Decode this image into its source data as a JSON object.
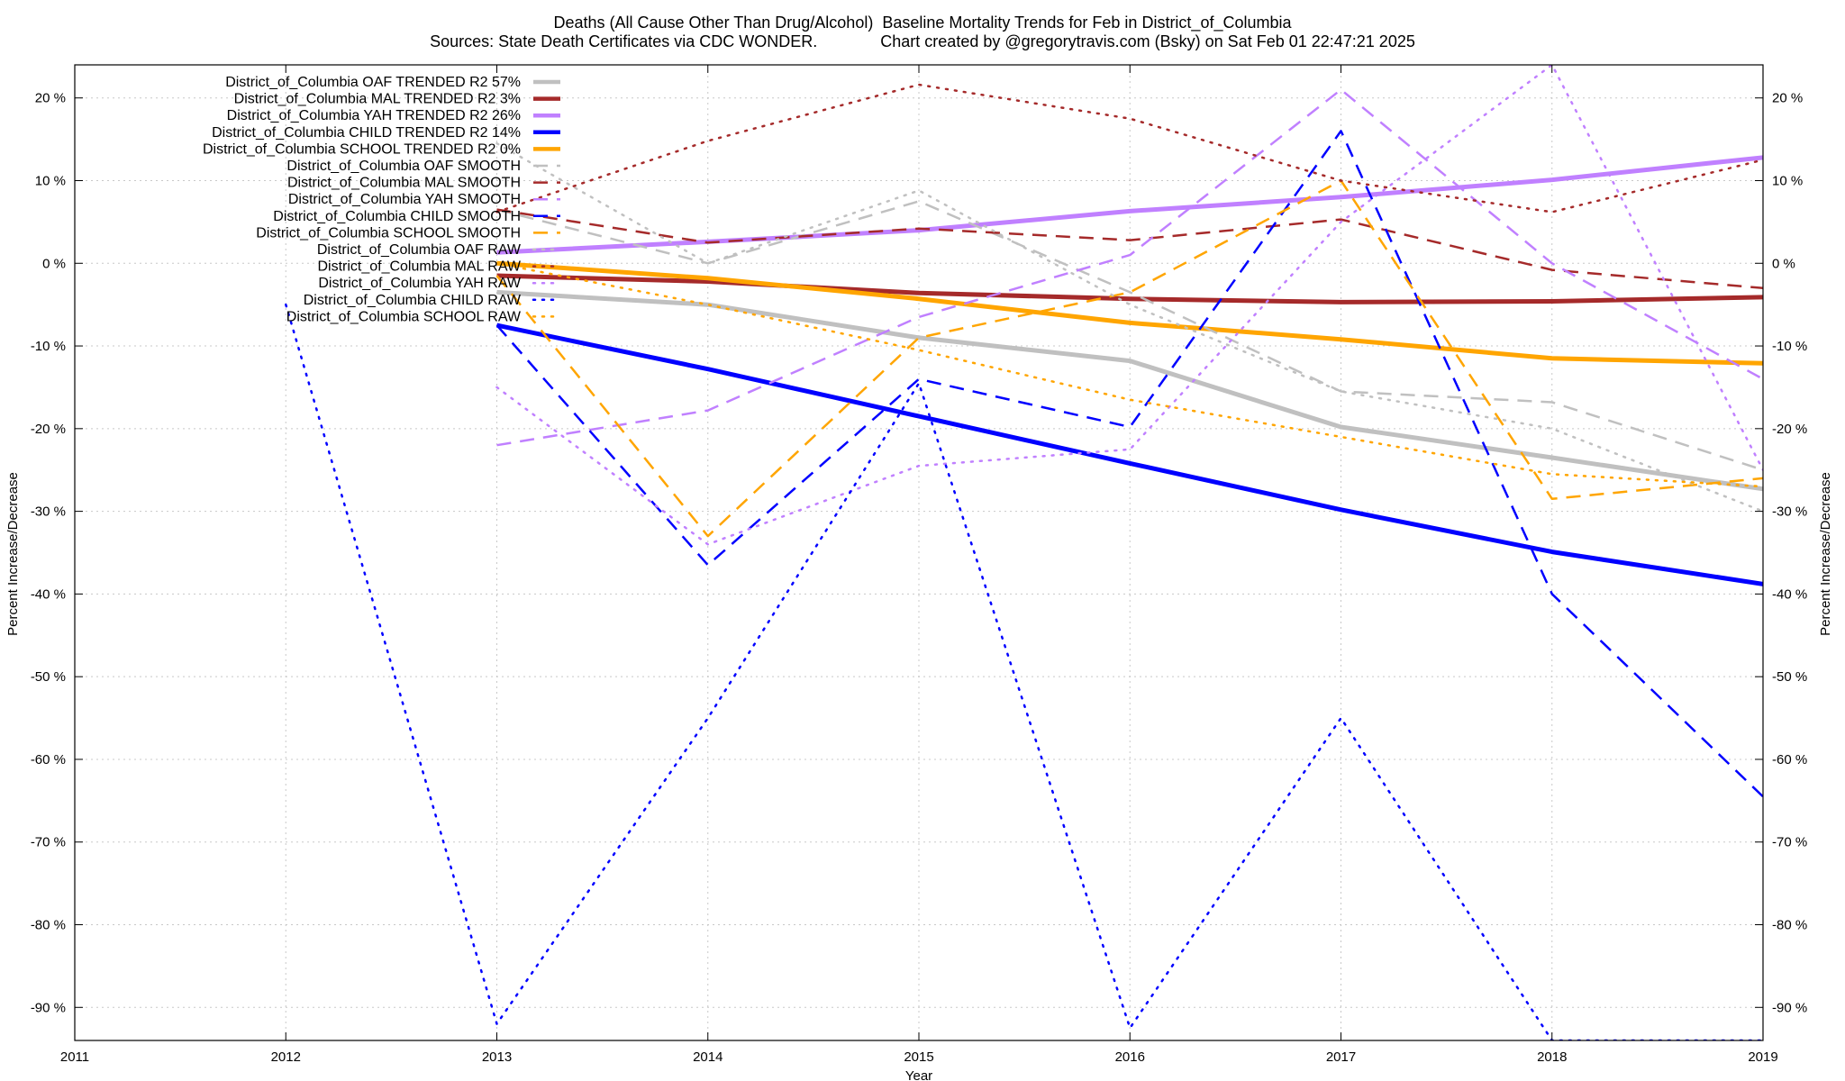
{
  "chart_data": {
    "type": "line",
    "title": "Deaths (All Cause Other Than Drug/Alcohol)  Baseline Mortality Trends for Feb in District_of_Columbia",
    "subtitle": "Sources: State Death Certificates via CDC WONDER.              Chart created by @gregorytravis.com (Bsky) on Sat Feb 01 22:47:21 2025",
    "xlabel": "Year",
    "ylabel": "Percent Increase/Decrease",
    "y2label": "Percent Increase/Decrease",
    "xlim": [
      2011,
      2019
    ],
    "ylim": [
      -94,
      24
    ],
    "x_ticks": [
      "2011",
      "2012",
      "2013",
      "2014",
      "2015",
      "2016",
      "2017",
      "2018",
      "2019"
    ],
    "y_ticks": [
      20,
      10,
      0,
      -10,
      -20,
      -30,
      -40,
      -50,
      -60,
      -70,
      -80,
      -90
    ],
    "y_tick_suffix": " %",
    "grid": true,
    "legend_position": "top-left",
    "series": [
      {
        "name": "District_of_Columbia OAF TRENDED R2  57%",
        "style": "solid",
        "color": "#c0c0c0",
        "x": [
          2013,
          2014,
          2015,
          2016,
          2017,
          2018,
          2019
        ],
        "y": [
          -3.5,
          -5,
          -9,
          -11.8,
          -19.8,
          -23.5,
          -27.3
        ]
      },
      {
        "name": "District_of_Columbia MAL TRENDED R2   3%",
        "style": "solid",
        "color": "#a52a2a",
        "x": [
          2013,
          2014,
          2015,
          2016,
          2017,
          2018,
          2019
        ],
        "y": [
          -1.5,
          -2.2,
          -3.6,
          -4.3,
          -4.7,
          -4.6,
          -4.1
        ]
      },
      {
        "name": "District_of_Columbia YAH TRENDED R2  26%",
        "style": "solid",
        "color": "#c080ff",
        "x": [
          2013,
          2014,
          2015,
          2016,
          2017,
          2018,
          2019
        ],
        "y": [
          1.3,
          2.6,
          4,
          6.3,
          8,
          10.1,
          12.8
        ]
      },
      {
        "name": "District_of_Columbia CHILD TRENDED R2  14%",
        "style": "solid",
        "color": "#0000ff",
        "x": [
          2013,
          2014,
          2015,
          2016,
          2017,
          2018,
          2019
        ],
        "y": [
          -7.5,
          -12.8,
          -18.5,
          -24.2,
          -29.8,
          -34.9,
          -38.8
        ]
      },
      {
        "name": "District_of_Columbia SCHOOL TRENDED R2   0%",
        "style": "solid",
        "color": "#ffa500",
        "x": [
          2013,
          2014,
          2015,
          2016,
          2017,
          2018,
          2019
        ],
        "y": [
          0,
          -1.8,
          -4.3,
          -7.2,
          -9.2,
          -11.5,
          -12.1
        ]
      },
      {
        "name": "District_of_Columbia OAF SMOOTH",
        "style": "dash",
        "color": "#c0c0c0",
        "x": [
          2013,
          2014,
          2015,
          2016,
          2017,
          2018,
          2019
        ],
        "y": [
          6.5,
          0,
          7.5,
          -3.5,
          -15.5,
          -16.8,
          -25
        ]
      },
      {
        "name": "District_of_Columbia MAL SMOOTH",
        "style": "dash",
        "color": "#a52a2a",
        "x": [
          2013,
          2014,
          2015,
          2016,
          2017,
          2018,
          2019
        ],
        "y": [
          6.5,
          2.5,
          4.2,
          2.8,
          5.3,
          -0.8,
          -3
        ]
      },
      {
        "name": "District_of_Columbia YAH SMOOTH",
        "style": "dash",
        "color": "#c080ff",
        "x": [
          2013,
          2014,
          2015,
          2016,
          2017,
          2018,
          2019
        ],
        "y": [
          -22,
          -17.8,
          -6.5,
          1,
          21,
          0,
          -14
        ]
      },
      {
        "name": "District_of_Columbia CHILD SMOOTH",
        "style": "dash",
        "color": "#0000ff",
        "x": [
          2013,
          2014,
          2015,
          2016,
          2017,
          2018,
          2019
        ],
        "y": [
          -7.5,
          -36.5,
          -14,
          -19.8,
          16,
          -40,
          -64.5
        ]
      },
      {
        "name": "District_of_Columbia SCHOOL SMOOTH",
        "style": "dash",
        "color": "#ffa500",
        "x": [
          2013,
          2014,
          2015,
          2016,
          2017,
          2018,
          2019
        ],
        "y": [
          -1.5,
          -33,
          -9,
          -3.5,
          10,
          -28.5,
          -26
        ]
      },
      {
        "name": "District_of_Columbia OAF RAW",
        "style": "dot",
        "color": "#c0c0c0",
        "x": [
          2013,
          2014,
          2015,
          2016,
          2017,
          2018,
          2019
        ],
        "y": [
          14.5,
          0,
          8.8,
          -5,
          -15.5,
          -20,
          -30
        ]
      },
      {
        "name": "District_of_Columbia MAL RAW",
        "style": "dot",
        "color": "#a52a2a",
        "x": [
          2013,
          2014,
          2015,
          2016,
          2017,
          2018,
          2019
        ],
        "y": [
          6.2,
          14.8,
          21.6,
          17.5,
          10,
          6.2,
          12.5
        ]
      },
      {
        "name": "District_of_Columbia YAH RAW",
        "style": "dot",
        "color": "#c080ff",
        "x": [
          2013,
          2014,
          2015,
          2016,
          2017,
          2018,
          2019
        ],
        "y": [
          -15,
          -34,
          -24.5,
          -22.5,
          5,
          24,
          -25
        ]
      },
      {
        "name": "District_of_Columbia CHILD RAW",
        "style": "dot",
        "color": "#0000ff",
        "x": [
          2012,
          2013,
          2014,
          2015,
          2016,
          2017,
          2018,
          2019
        ],
        "y": [
          -5,
          -92,
          -55,
          -14.5,
          -92.5,
          -55,
          -94,
          -94
        ]
      },
      {
        "name": "District_of_Columbia SCHOOL RAW",
        "style": "dot",
        "color": "#ffa500",
        "x": [
          2013,
          2014,
          2015,
          2016,
          2017,
          2018,
          2019
        ],
        "y": [
          0,
          -5,
          -10.5,
          -16.5,
          -21,
          -25.5,
          -27
        ]
      }
    ]
  }
}
